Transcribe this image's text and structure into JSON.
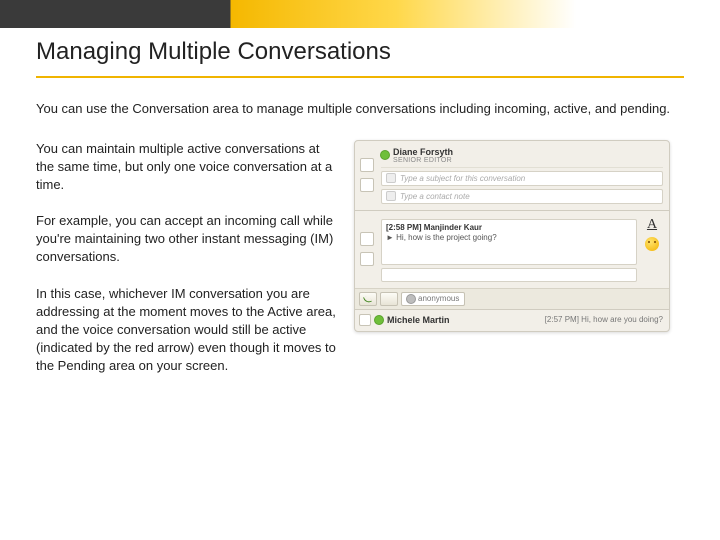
{
  "slide": {
    "title": "Managing Multiple Conversations",
    "intro": "You can use the Conversation area to manage multiple conversations including incoming, active, and pending.",
    "paragraphs": [
      "You can maintain multiple active conversations at the same time, but only one voice conversation at a time.",
      "For example, you can accept an incoming call while you're maintaining two other instant messaging (IM) conversations.",
      "In this case, whichever IM conversation you are addressing at the moment moves to the Active area, and the voice conversation would still be active (indicated by the red arrow) even though it moves to the Pending area on your screen."
    ]
  },
  "app": {
    "contact1": {
      "name": "Diane Forsyth",
      "role": "SENIOR EDITOR"
    },
    "subject_placeholder": "Type a subject for this conversation",
    "note_placeholder": "Type a contact note",
    "msg1": {
      "meta": "[2:58 PM] Manjinder Kaur",
      "text": "► Hi, how is the project going?"
    },
    "anon_label": "anonymous",
    "contact2": "Michele Martin",
    "summary_text": "[2:57 PM] Hi, how are you doing?"
  },
  "colors": {
    "accent_dark": "#3a3a3a",
    "accent_gold": "#f0b400",
    "panel_bg": "#f2efe8",
    "border": "#d0ccc0"
  }
}
